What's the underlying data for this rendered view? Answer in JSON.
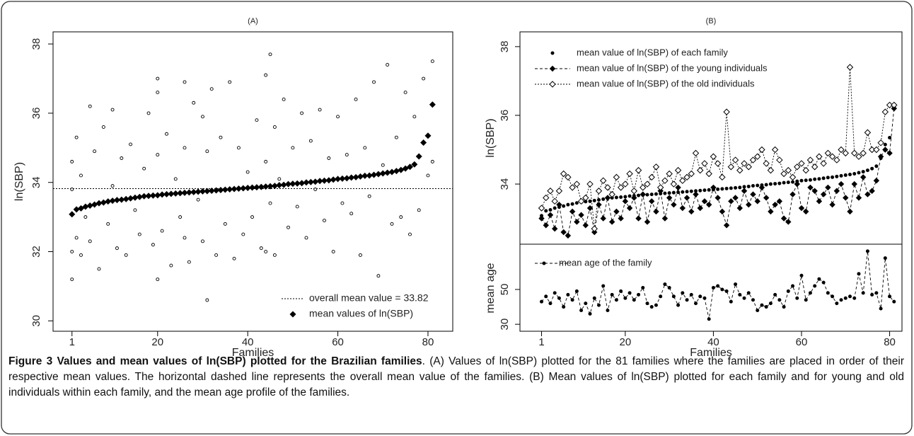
{
  "chart_data": [
    {
      "type": "scatter",
      "title": "(A)",
      "x_label": "Families",
      "y_label": "ln(SBP)",
      "xlim": [
        -3.2,
        85.5
      ],
      "ylim": [
        29.7,
        38.35
      ],
      "xticks": [
        1,
        20,
        40,
        60,
        80
      ],
      "yticks": [
        30,
        32,
        34,
        36,
        38
      ],
      "overall_mean": 33.82,
      "legend": [
        "overall mean value = 33.82",
        "mean values of ln(SBP)"
      ],
      "points": {
        "x": [
          1,
          1,
          1,
          1,
          2,
          2,
          3,
          3,
          4,
          5,
          5,
          6,
          7,
          8,
          9,
          10,
          10,
          11,
          12,
          13,
          14,
          15,
          16,
          17,
          18,
          19,
          20,
          20,
          20,
          20,
          21,
          22,
          23,
          24,
          25,
          26,
          26,
          26,
          27,
          28,
          29,
          30,
          30,
          31,
          31,
          32,
          33,
          34,
          35,
          36,
          37,
          38,
          39,
          40,
          41,
          42,
          43,
          44,
          44,
          44,
          45,
          45,
          46,
          46,
          47,
          48,
          49,
          50,
          51,
          52,
          53,
          54,
          55,
          56,
          57,
          58,
          59,
          60,
          61,
          62,
          63,
          64,
          65,
          66,
          67,
          68,
          69,
          70,
          71,
          72,
          73,
          74,
          75,
          76,
          77,
          78,
          79,
          80,
          81,
          81
        ],
        "y": [
          31.2,
          34.6,
          32.0,
          33.8,
          35.3,
          32.4,
          34.2,
          31.9,
          33.0,
          36.2,
          32.3,
          34.9,
          31.5,
          35.6,
          32.8,
          33.9,
          36.1,
          32.1,
          34.7,
          31.9,
          35.1,
          33.2,
          32.5,
          34.4,
          36.0,
          32.2,
          37.0,
          31.2,
          34.8,
          36.6,
          32.6,
          35.4,
          31.6,
          34.1,
          33.0,
          36.9,
          32.4,
          35.0,
          31.7,
          36.3,
          33.5,
          32.3,
          35.9,
          30.6,
          34.9,
          36.7,
          31.9,
          35.3,
          32.8,
          36.9,
          31.8,
          35.0,
          32.5,
          34.3,
          33.0,
          35.8,
          32.1,
          34.6,
          37.1,
          32.0,
          37.7,
          33.4,
          35.6,
          31.9,
          34.1,
          36.4,
          32.7,
          35.0,
          33.3,
          36.0,
          32.4,
          35.2,
          33.8,
          36.1,
          32.9,
          34.7,
          32.0,
          35.9,
          33.4,
          34.8,
          33.1,
          36.4,
          31.9,
          35.0,
          33.6,
          36.9,
          31.3,
          34.5,
          37.4,
          32.8,
          35.3,
          33.0,
          36.6,
          32.5,
          35.9,
          33.2,
          37.0,
          34.2,
          37.5,
          34.6
        ]
      },
      "series": [
        {
          "name": "mean values of ln(SBP)",
          "color": "#000000",
          "x": [
            1,
            2,
            3,
            4,
            5,
            6,
            7,
            8,
            9,
            10,
            11,
            12,
            13,
            14,
            15,
            16,
            17,
            18,
            19,
            20,
            21,
            22,
            23,
            24,
            25,
            26,
            27,
            28,
            29,
            30,
            31,
            32,
            33,
            34,
            35,
            36,
            37,
            38,
            39,
            40,
            41,
            42,
            43,
            44,
            45,
            46,
            47,
            48,
            49,
            50,
            51,
            52,
            53,
            54,
            55,
            56,
            57,
            58,
            59,
            60,
            61,
            62,
            63,
            64,
            65,
            66,
            67,
            68,
            69,
            70,
            71,
            72,
            73,
            74,
            75,
            76,
            77,
            78,
            79,
            80,
            81
          ],
          "values": [
            33.08,
            33.22,
            33.25,
            33.3,
            33.33,
            33.36,
            33.4,
            33.42,
            33.45,
            33.47,
            33.49,
            33.5,
            33.52,
            33.54,
            33.56,
            33.58,
            33.6,
            33.61,
            33.62,
            33.63,
            33.65,
            33.66,
            33.67,
            33.68,
            33.69,
            33.7,
            33.71,
            33.72,
            33.73,
            33.74,
            33.75,
            33.76,
            33.77,
            33.78,
            33.79,
            33.8,
            33.81,
            33.82,
            33.83,
            33.84,
            33.85,
            33.86,
            33.87,
            33.88,
            33.89,
            33.9,
            33.92,
            33.93,
            33.95,
            33.96,
            33.97,
            33.98,
            34.0,
            34.01,
            34.02,
            34.04,
            34.05,
            34.06,
            34.08,
            34.1,
            34.11,
            34.12,
            34.14,
            34.15,
            34.17,
            34.19,
            34.2,
            34.22,
            34.24,
            34.26,
            34.28,
            34.3,
            34.33,
            34.36,
            34.4,
            34.45,
            34.52,
            34.75,
            35.15,
            35.35,
            36.25
          ]
        }
      ]
    },
    {
      "type": "line",
      "title": "(B)",
      "y_label": "ln(SBP)",
      "xlim": [
        -3.9,
        82.8
      ],
      "ylim": [
        32.25,
        38.43
      ],
      "yticks": [
        34,
        36,
        38
      ],
      "series": [
        {
          "name": "mean value of ln(SBP) of each family",
          "color": "#000000",
          "style": "points",
          "x": [
            1,
            2,
            3,
            4,
            5,
            6,
            7,
            8,
            9,
            10,
            11,
            12,
            13,
            14,
            15,
            16,
            17,
            18,
            19,
            20,
            21,
            22,
            23,
            24,
            25,
            26,
            27,
            28,
            29,
            30,
            31,
            32,
            33,
            34,
            35,
            36,
            37,
            38,
            39,
            40,
            41,
            42,
            43,
            44,
            45,
            46,
            47,
            48,
            49,
            50,
            51,
            52,
            53,
            54,
            55,
            56,
            57,
            58,
            59,
            60,
            61,
            62,
            63,
            64,
            65,
            66,
            67,
            68,
            69,
            70,
            71,
            72,
            73,
            74,
            75,
            76,
            77,
            78,
            79,
            80,
            81
          ],
          "values": [
            33.08,
            33.22,
            33.25,
            33.3,
            33.33,
            33.36,
            33.4,
            33.42,
            33.45,
            33.47,
            33.49,
            33.5,
            33.52,
            33.54,
            33.56,
            33.58,
            33.6,
            33.61,
            33.62,
            33.63,
            33.65,
            33.66,
            33.67,
            33.68,
            33.69,
            33.7,
            33.71,
            33.72,
            33.73,
            33.74,
            33.75,
            33.76,
            33.77,
            33.78,
            33.79,
            33.8,
            33.81,
            33.82,
            33.83,
            33.84,
            33.85,
            33.86,
            33.87,
            33.88,
            33.89,
            33.9,
            33.92,
            33.93,
            33.95,
            33.96,
            33.97,
            33.98,
            34.0,
            34.01,
            34.02,
            34.04,
            34.05,
            34.06,
            34.08,
            34.1,
            34.11,
            34.12,
            34.14,
            34.15,
            34.17,
            34.19,
            34.2,
            34.22,
            34.24,
            34.26,
            34.28,
            34.3,
            34.33,
            34.36,
            34.4,
            34.45,
            34.52,
            34.75,
            35.15,
            35.35,
            36.25
          ]
        },
        {
          "name": "mean value of ln(SBP) of the young individuals",
          "color": "#000000",
          "style": "dashed-diamond",
          "x": [
            1,
            2,
            3,
            4,
            5,
            6,
            7,
            8,
            9,
            10,
            11,
            12,
            13,
            14,
            15,
            16,
            17,
            18,
            19,
            20,
            21,
            22,
            23,
            24,
            25,
            26,
            27,
            28,
            29,
            30,
            31,
            32,
            33,
            34,
            35,
            36,
            37,
            38,
            39,
            40,
            41,
            42,
            43,
            44,
            45,
            46,
            47,
            48,
            49,
            50,
            51,
            52,
            53,
            54,
            55,
            56,
            57,
            58,
            59,
            60,
            61,
            62,
            63,
            64,
            65,
            66,
            67,
            68,
            69,
            70,
            71,
            72,
            73,
            74,
            75,
            76,
            77,
            78,
            79,
            80,
            81
          ],
          "values": [
            33.0,
            32.8,
            33.1,
            32.7,
            33.4,
            32.6,
            32.5,
            33.2,
            32.9,
            33.1,
            32.8,
            33.3,
            32.6,
            33.4,
            33.0,
            33.6,
            32.9,
            33.2,
            33.0,
            33.5,
            33.3,
            33.6,
            33.0,
            33.7,
            32.9,
            33.5,
            33.2,
            33.8,
            33.0,
            33.6,
            33.4,
            33.9,
            33.3,
            33.6,
            33.2,
            33.7,
            33.3,
            33.5,
            33.4,
            33.9,
            33.6,
            33.2,
            32.8,
            33.5,
            33.6,
            33.3,
            33.8,
            33.4,
            33.7,
            33.5,
            33.9,
            33.6,
            33.2,
            33.4,
            33.5,
            33.0,
            32.9,
            33.7,
            34.0,
            33.3,
            33.2,
            33.9,
            33.8,
            33.5,
            33.7,
            33.9,
            33.4,
            33.8,
            34.0,
            33.6,
            33.2,
            34.0,
            33.6,
            34.2,
            33.7,
            33.8,
            34.1,
            34.8,
            35.0,
            34.9,
            36.2
          ]
        },
        {
          "name": "mean value of ln(SBP) of the old individuals",
          "color": "#000000",
          "style": "dotted-open-diamond",
          "x": [
            1,
            2,
            3,
            4,
            5,
            6,
            7,
            8,
            9,
            10,
            11,
            12,
            13,
            14,
            15,
            16,
            17,
            18,
            19,
            20,
            21,
            22,
            23,
            24,
            25,
            26,
            27,
            28,
            29,
            30,
            31,
            32,
            33,
            34,
            35,
            36,
            37,
            38,
            39,
            40,
            41,
            42,
            43,
            44,
            45,
            46,
            47,
            48,
            49,
            50,
            51,
            52,
            53,
            54,
            55,
            56,
            57,
            58,
            59,
            60,
            61,
            62,
            63,
            64,
            65,
            66,
            67,
            68,
            69,
            70,
            71,
            72,
            73,
            74,
            75,
            76,
            77,
            78,
            79,
            80,
            81
          ],
          "values": [
            33.3,
            33.6,
            33.8,
            33.5,
            33.8,
            34.3,
            34.2,
            33.9,
            34.0,
            33.5,
            33.6,
            34.0,
            32.7,
            33.8,
            34.1,
            33.9,
            33.7,
            34.2,
            33.9,
            34.0,
            34.3,
            33.8,
            34.4,
            33.9,
            34.0,
            34.2,
            34.5,
            33.9,
            34.1,
            34.3,
            34.0,
            34.4,
            34.1,
            34.2,
            34.3,
            34.9,
            34.4,
            34.6,
            34.3,
            34.8,
            34.6,
            34.2,
            36.1,
            34.5,
            34.7,
            34.4,
            34.6,
            34.5,
            34.7,
            34.8,
            35.0,
            34.6,
            34.4,
            35.0,
            34.7,
            34.3,
            34.4,
            34.2,
            34.5,
            34.6,
            34.4,
            34.7,
            34.5,
            34.8,
            34.6,
            34.9,
            34.8,
            34.7,
            35.0,
            34.9,
            37.4,
            34.9,
            34.8,
            34.9,
            35.5,
            35.0,
            35.0,
            35.2,
            36.1,
            36.3,
            36.3
          ]
        }
      ]
    },
    {
      "type": "line",
      "x_label": "Families",
      "y_label": "mean age",
      "xlim": [
        -3.9,
        82.8
      ],
      "ylim": [
        26,
        76
      ],
      "xticks": [
        1,
        20,
        40,
        60,
        80
      ],
      "yticks": [
        30,
        50
      ],
      "series": [
        {
          "name": "mean age of the family",
          "color": "#000000",
          "style": "dashed-dot",
          "x": [
            1,
            2,
            3,
            4,
            5,
            6,
            7,
            8,
            9,
            10,
            11,
            12,
            13,
            14,
            15,
            16,
            17,
            18,
            19,
            20,
            21,
            22,
            23,
            24,
            25,
            26,
            27,
            28,
            29,
            30,
            31,
            32,
            33,
            34,
            35,
            36,
            37,
            38,
            39,
            40,
            41,
            42,
            43,
            44,
            45,
            46,
            47,
            48,
            49,
            50,
            51,
            52,
            53,
            54,
            55,
            56,
            57,
            58,
            59,
            60,
            61,
            62,
            63,
            64,
            65,
            66,
            67,
            68,
            69,
            70,
            71,
            72,
            73,
            74,
            75,
            76,
            77,
            78,
            79,
            80,
            81
          ],
          "values": [
            43,
            46,
            42,
            48,
            45,
            40,
            47,
            44,
            49,
            38,
            42,
            36,
            45,
            41,
            52,
            38,
            47,
            44,
            49,
            45,
            48,
            44,
            47,
            51,
            42,
            40,
            41,
            46,
            53,
            51,
            46,
            41,
            48,
            44,
            47,
            42,
            46,
            45,
            33,
            51,
            52,
            50,
            49,
            43,
            53,
            47,
            45,
            48,
            44,
            38,
            41,
            40,
            42,
            47,
            44,
            40,
            49,
            52,
            45,
            58,
            44,
            48,
            52,
            56,
            54,
            48,
            46,
            42,
            44,
            45,
            46,
            45,
            59,
            48,
            72,
            47,
            48,
            39,
            68,
            46,
            43
          ]
        }
      ]
    }
  ],
  "caption": {
    "title": "Figure 3 Values and mean values of ln(SBP) plotted for the Brazilian families",
    "text": ". (A) Values of ln(SBP) plotted for the 81 families where the families are placed in order of their respective mean values. The horizontal dashed line represents the overall mean value of the families. (B) Mean values of ln(SBP) plotted for each family and for young and old individuals within each family, and the mean age profile of the families."
  }
}
